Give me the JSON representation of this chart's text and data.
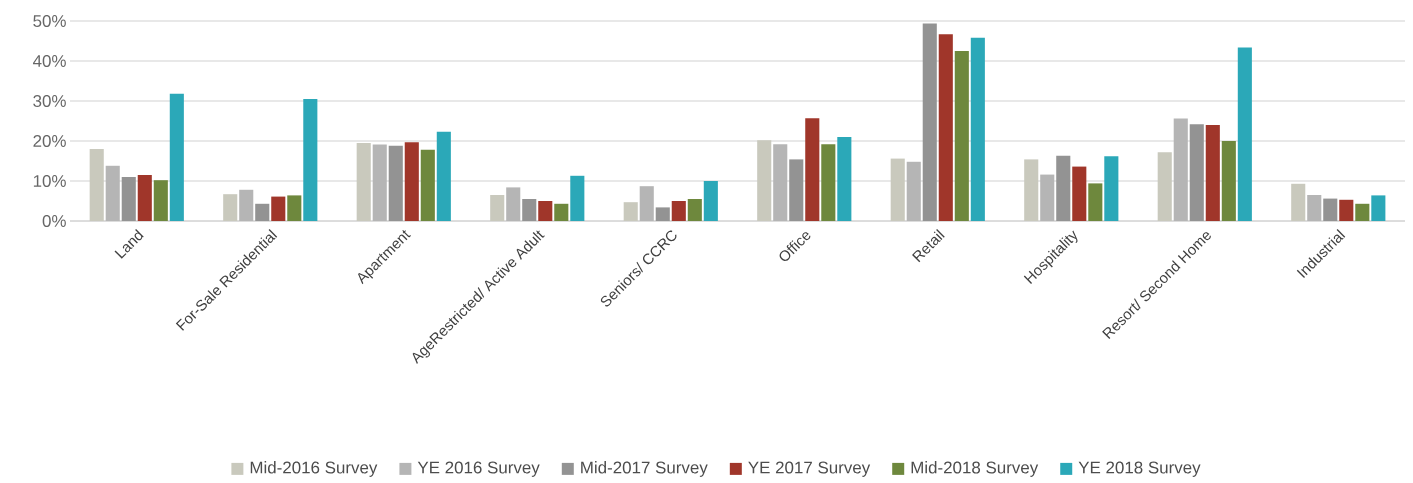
{
  "chart_data": {
    "type": "bar",
    "categories": [
      "Land",
      "For-Sale Residential",
      "Apartment",
      "AgeRestricted/ Active Adult",
      "Seniors/ CCRC",
      "Office",
      "Retail",
      "Hospitality",
      "Resort/ Second Home",
      "Industrial"
    ],
    "series": [
      {
        "name": "Mid-2016 Survey",
        "color": "#c9c9bd",
        "values": [
          18,
          6.7,
          19.5,
          6.5,
          4.7,
          20.2,
          15.6,
          15.4,
          17.2,
          9.3
        ]
      },
      {
        "name": "YE 2016 Survey",
        "color": "#b5b5b5",
        "values": [
          13.8,
          7.8,
          19.1,
          8.4,
          8.7,
          19.2,
          14.8,
          11.6,
          25.6,
          6.5
        ]
      },
      {
        "name": "Mid-2017 Survey",
        "color": "#939393",
        "values": [
          11,
          4.3,
          18.8,
          5.5,
          3.4,
          15.4,
          49.4,
          16.3,
          24.2,
          5.6
        ]
      },
      {
        "name": "YE 2017 Survey",
        "color": "#a0362a",
        "values": [
          11.5,
          6.1,
          19.7,
          5,
          5,
          25.7,
          46.7,
          13.6,
          24,
          5.3
        ]
      },
      {
        "name": "Mid-2018 Survey",
        "color": "#6e883d",
        "values": [
          10.2,
          6.4,
          17.8,
          4.3,
          5.5,
          19.2,
          42.5,
          9.4,
          20,
          4.3
        ]
      },
      {
        "name": "YE 2018 Survey",
        "color": "#2ba8b8",
        "values": [
          31.8,
          30.5,
          22.3,
          11.3,
          10,
          21,
          45.8,
          16.2,
          43.4,
          6.4
        ]
      }
    ],
    "ylim": [
      0,
      50
    ],
    "yticks": [
      {
        "value": 0,
        "label": "0%"
      },
      {
        "value": 10,
        "label": "10%"
      },
      {
        "value": 20,
        "label": "20%"
      },
      {
        "value": 30,
        "label": "30%"
      },
      {
        "value": 40,
        "label": "40%"
      },
      {
        "value": 50,
        "label": "50%"
      }
    ],
    "grid": "y",
    "legend": "bottom"
  }
}
